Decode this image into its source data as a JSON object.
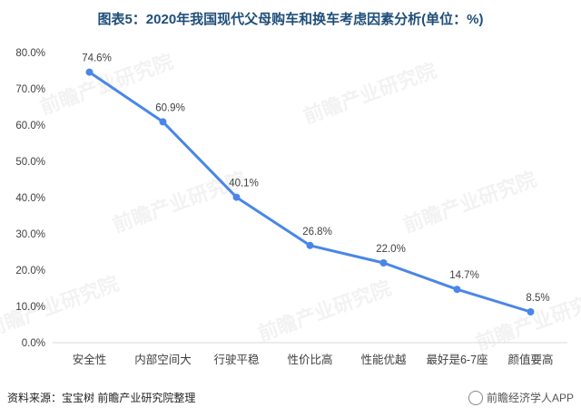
{
  "chart_data": {
    "type": "line",
    "title": "图表5：2020年我国现代父母购车和换车考虑因素分析(单位：%)",
    "categories": [
      "安全性",
      "内部空间大",
      "行驶平稳",
      "性价比高",
      "性能优越",
      "最好是6-7座",
      "颜值要高"
    ],
    "values": [
      74.6,
      60.9,
      40.1,
      26.8,
      22.0,
      14.7,
      8.5
    ],
    "data_labels": [
      "74.6%",
      "60.9%",
      "40.1%",
      "26.8%",
      "22.0%",
      "14.7%",
      "8.5%"
    ],
    "y_ticks": [
      "0.0%",
      "10.0%",
      "20.0%",
      "30.0%",
      "40.0%",
      "50.0%",
      "60.0%",
      "70.0%",
      "80.0%"
    ],
    "ylim": [
      0,
      80
    ],
    "grid": false,
    "line_color": "#4a86e8",
    "watermark": "前瞻产业研究院"
  },
  "footer": {
    "source": "资料来源：宝宝树 前瞻产业研究院整理",
    "credit": "前瞻经济学人APP"
  }
}
